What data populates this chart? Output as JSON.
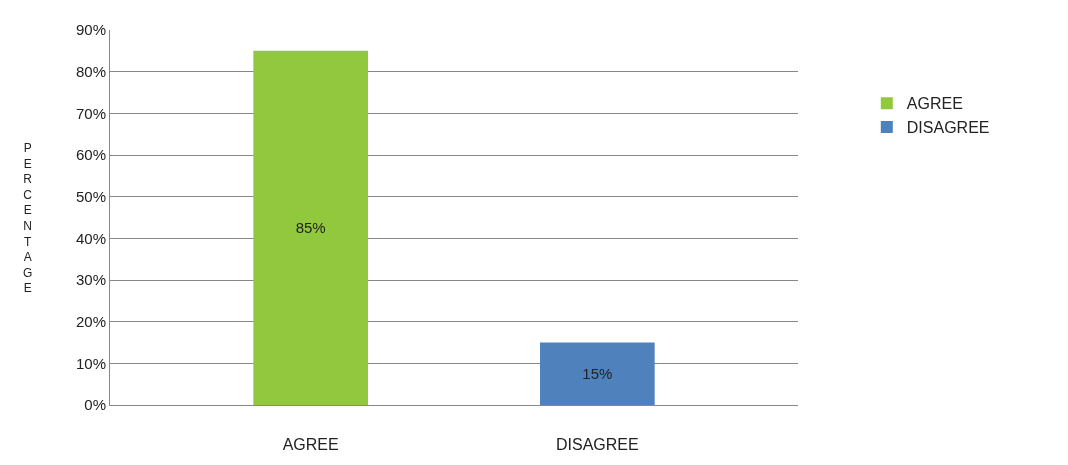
{
  "chart_data": {
    "type": "bar",
    "ylabel": "PERCENTAGE",
    "categories": [
      "AGREE",
      "DISAGREE"
    ],
    "series": [
      {
        "name": "AGREE",
        "color": "#92c83e",
        "values": [
          85,
          null
        ],
        "value_labels": [
          "85%",
          null
        ]
      },
      {
        "name": "DISAGREE",
        "color": "#4f81bd",
        "values": [
          null,
          15
        ],
        "value_labels": [
          null,
          "15%"
        ]
      }
    ],
    "ylim": [
      0,
      90
    ],
    "yticks": [
      {
        "value": 0,
        "label": "0%"
      },
      {
        "value": 10,
        "label": "10%"
      },
      {
        "value": 20,
        "label": "20%"
      },
      {
        "value": 30,
        "label": "30%"
      },
      {
        "value": 40,
        "label": "40%"
      },
      {
        "value": 50,
        "label": "50%"
      },
      {
        "value": 60,
        "label": "60%"
      },
      {
        "value": 70,
        "label": "70%"
      },
      {
        "value": 80,
        "label": "80%"
      },
      {
        "value": 90,
        "label": "90%"
      }
    ],
    "grid": "y",
    "legend": "right"
  }
}
